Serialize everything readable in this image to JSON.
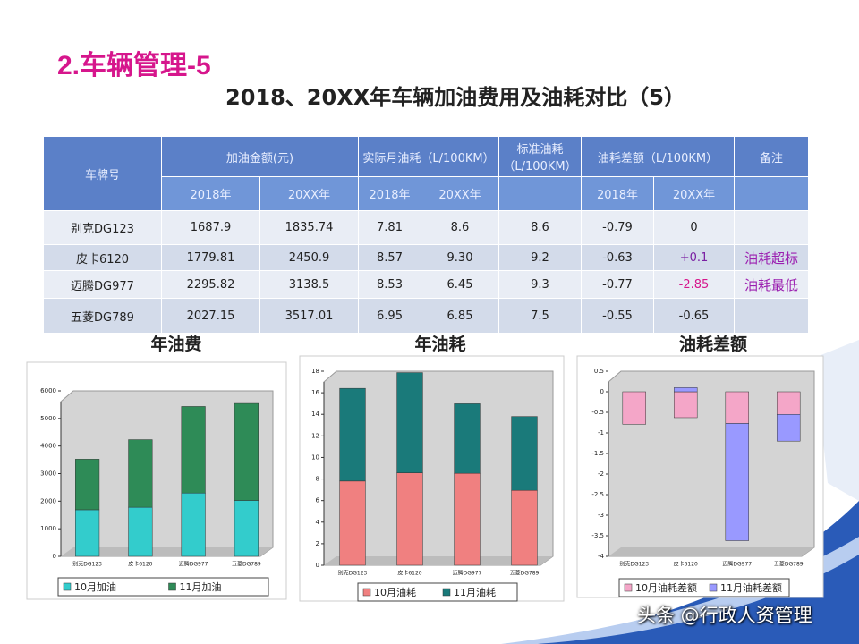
{
  "title": "2.车辆管理-5",
  "subtitle": "2018、20XX年车辆加油费用及油耗对比（5）",
  "table": {
    "header": [
      "车牌号",
      "加油金额(元)",
      "实际月油耗（L/100KM）",
      "标准油耗（L/100KM）",
      "油耗差额（L/100KM）",
      "备注"
    ],
    "subheader": [
      "2018年",
      "20XX年",
      "2018年",
      "20XX年",
      "2018年",
      "20XX年"
    ],
    "rows": [
      [
        "别克DG123",
        "1687.9",
        "1835.74",
        "7.81",
        "8.6",
        "8.6",
        "-0.79",
        "0"
      ],
      [
        "皮卡6120",
        "1779.81",
        "2450.9",
        "8.57",
        "9.30",
        "9.2",
        "-0.63",
        "+0.1",
        "油耗超标"
      ],
      [
        "迈腾DG977",
        "2295.82",
        "3138.5",
        "8.53",
        "6.45",
        "9.3",
        "-0.77",
        "-2.85",
        "油耗最低"
      ],
      [
        "五菱DG789",
        "2027.15",
        "3517.01",
        "6.95",
        "6.85",
        "7.5",
        "-0.55",
        "-0.65"
      ]
    ]
  },
  "chart_data": [
    {
      "type": "bar",
      "stacked": true,
      "title": "年油费",
      "categories": [
        "别克DG123",
        "皮卡6120",
        "迈腾DG977",
        "五菱DG789"
      ],
      "series": [
        {
          "name": "10月加油",
          "color": "#33cccc",
          "values": [
            1687.9,
            1779.81,
            2295.82,
            2027.15
          ]
        },
        {
          "name": "11月加油",
          "color": "#2e8b57",
          "values": [
            1835.74,
            2450.9,
            3138.5,
            3517.01
          ]
        }
      ],
      "ylim": [
        0,
        6000
      ],
      "yticks": [
        0,
        1000,
        2000,
        3000,
        4000,
        5000,
        6000
      ],
      "grid": false
    },
    {
      "type": "bar",
      "stacked": true,
      "title": "年油耗",
      "categories": [
        "别克DG123",
        "皮卡6120",
        "迈腾DG977",
        "五菱DG789"
      ],
      "series": [
        {
          "name": "10月油耗",
          "color": "#f08080",
          "values": [
            7.81,
            8.57,
            8.53,
            6.95
          ]
        },
        {
          "name": "11月油耗",
          "color": "#1a7a7a",
          "values": [
            8.6,
            9.3,
            6.45,
            6.85
          ]
        }
      ],
      "ylim": [
        0,
        18
      ],
      "yticks": [
        0,
        2,
        4,
        6,
        8,
        10,
        12,
        14,
        16,
        18
      ],
      "grid": false
    },
    {
      "type": "bar",
      "stacked": true,
      "title": "油耗差额",
      "categories": [
        "别克DG123",
        "皮卡6120",
        "迈腾DG977",
        "五菱DG789"
      ],
      "series": [
        {
          "name": "10月油耗差额",
          "color": "#f4a6c8",
          "values": [
            -0.79,
            -0.63,
            -0.77,
            -0.55
          ]
        },
        {
          "name": "11月油耗差额",
          "color": "#9999ff",
          "values": [
            0,
            0.1,
            -2.85,
            -0.65
          ]
        }
      ],
      "ylim": [
        -4,
        0.5
      ],
      "yticks": [
        -4,
        -3.5,
        -3,
        -2.5,
        -2,
        -1.5,
        -1,
        -0.5,
        0,
        0.5
      ],
      "grid": false
    }
  ],
  "watermark": "头条 @行政人资管理"
}
